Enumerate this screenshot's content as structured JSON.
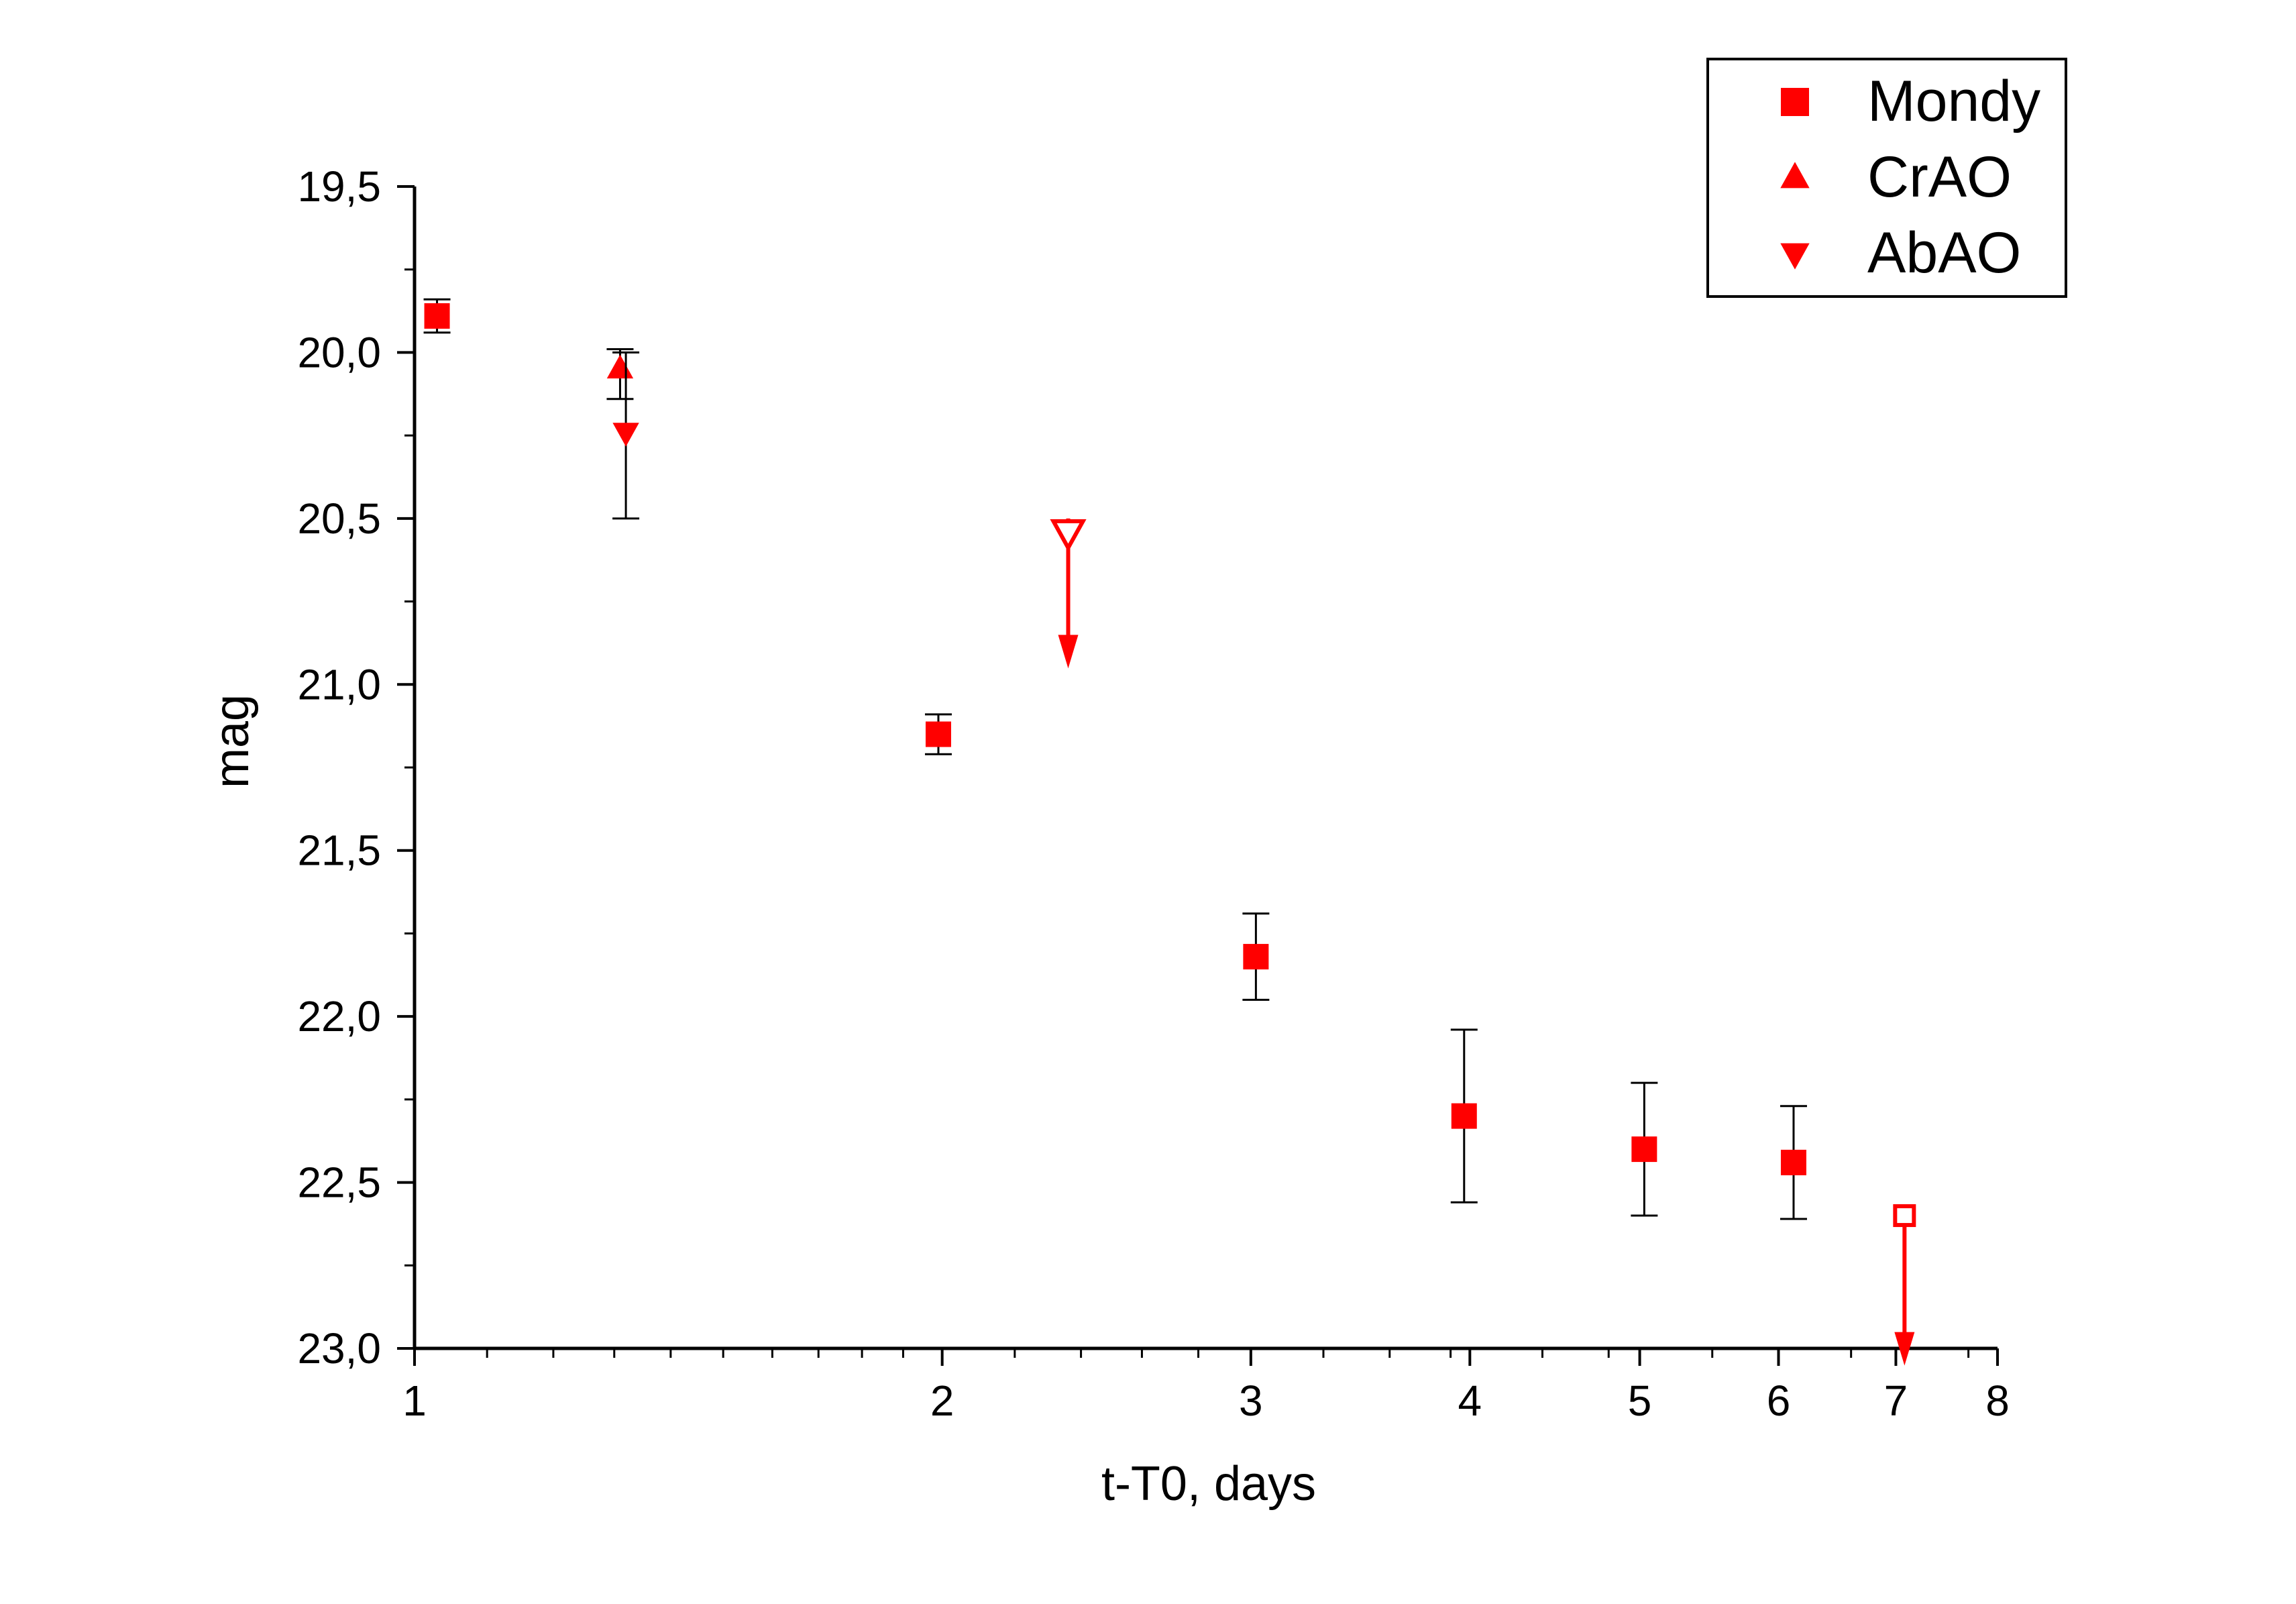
{
  "chart_data": {
    "type": "scatter",
    "title": "",
    "xlabel": "t-T0, days",
    "ylabel": "mag",
    "x_scale": "log",
    "xlim": [
      1,
      8
    ],
    "ylim": [
      23.0,
      19.5
    ],
    "y_inverted": true,
    "grid": false,
    "legend_position": "top-right",
    "x_ticks": [
      {
        "value": 1,
        "label": "1"
      },
      {
        "value": 2,
        "label": "2"
      },
      {
        "value": 3,
        "label": "3"
      },
      {
        "value": 4,
        "label": "4"
      },
      {
        "value": 5,
        "label": "5"
      },
      {
        "value": 6,
        "label": "6"
      },
      {
        "value": 7,
        "label": "7"
      },
      {
        "value": 8,
        "label": "8"
      }
    ],
    "y_ticks": [
      {
        "value": 19.5,
        "label": "19,5"
      },
      {
        "value": 20.0,
        "label": "20,0"
      },
      {
        "value": 20.5,
        "label": "20,5"
      },
      {
        "value": 21.0,
        "label": "21,0"
      },
      {
        "value": 21.5,
        "label": "21,5"
      },
      {
        "value": 22.0,
        "label": "22,0"
      },
      {
        "value": 22.5,
        "label": "22,5"
      },
      {
        "value": 23.0,
        "label": "23,0"
      }
    ],
    "series": [
      {
        "name": "Mondy",
        "marker": "square",
        "color": "#ff0000",
        "points": [
          {
            "x": 1.03,
            "y": 19.89,
            "err_low": 19.84,
            "err_high": 19.94
          },
          {
            "x": 1.99,
            "y": 21.15,
            "err_low": 21.09,
            "err_high": 21.21
          },
          {
            "x": 3.02,
            "y": 21.82,
            "err_low": 21.69,
            "err_high": 21.95
          },
          {
            "x": 3.97,
            "y": 22.3,
            "err_low": 22.04,
            "err_high": 22.56
          },
          {
            "x": 5.03,
            "y": 22.4,
            "err_low": 22.2,
            "err_high": 22.6
          },
          {
            "x": 6.12,
            "y": 22.44,
            "err_low": 22.27,
            "err_high": 22.61
          }
        ],
        "upper_limits": [
          {
            "x": 7.08,
            "y": 22.6
          }
        ]
      },
      {
        "name": "CrAO",
        "marker": "triangle-up",
        "color": "#ff0000",
        "points": [
          {
            "x": 1.31,
            "y": 20.05,
            "err_low": 19.99,
            "err_high": 20.14
          }
        ],
        "upper_limits": []
      },
      {
        "name": "AbAO",
        "marker": "triangle-down",
        "color": "#ff0000",
        "points": [
          {
            "x": 1.32,
            "y": 20.24,
            "err_low": 20.0,
            "err_high": 20.5
          }
        ],
        "upper_limits": [
          {
            "x": 2.36,
            "y": 20.5
          }
        ]
      }
    ]
  }
}
